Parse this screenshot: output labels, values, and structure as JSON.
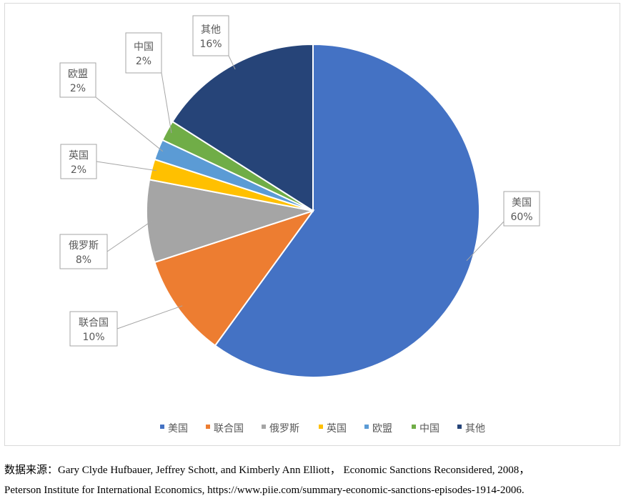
{
  "chart_data": {
    "type": "pie",
    "title": "",
    "slices": [
      {
        "name": "美国",
        "value": 60,
        "label": "60%",
        "color": "#4472C4"
      },
      {
        "name": "联合国",
        "value": 10,
        "label": "10%",
        "color": "#ED7D31"
      },
      {
        "name": "俄罗斯",
        "value": 8,
        "label": "8%",
        "color": "#A5A5A5"
      },
      {
        "name": "英国",
        "value": 2,
        "label": "2%",
        "color": "#FFC000"
      },
      {
        "name": "欧盟",
        "value": 2,
        "label": "2%",
        "color": "#5B9BD5"
      },
      {
        "name": "中国",
        "value": 2,
        "label": "2%",
        "color": "#70AD47"
      },
      {
        "name": "其他",
        "value": 16,
        "label": "16%",
        "color": "#264478"
      }
    ],
    "legend_position": "bottom"
  },
  "source": {
    "line1": "数据来源：Gary Clyde Hufbauer, Jeffrey Schott, and Kimberly Ann Elliott， Economic Sanctions Reconsidered, 2008，",
    "line2": "Peterson Institute for International Economics, https://www.piie.com/summary-economic-sanctions-episodes-1914-2006."
  }
}
